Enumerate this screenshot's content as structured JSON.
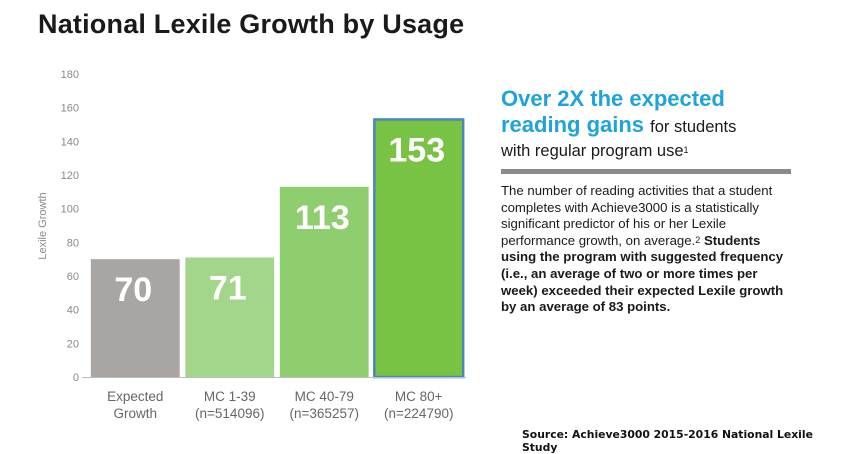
{
  "title": "National Lexile Growth by Usage",
  "callout": {
    "headline_line1": "Over 2X the expected",
    "headline_line2": "reading gains",
    "headline_tail1": "for students",
    "headline_tail2": "with regular program use",
    "footnote1": "1",
    "body_intro": "The number of reading activities that a student completes with Achieve3000 is a statistically significant predictor of his or her Lexile performance growth, on average.",
    "footnote2": "2",
    "body_bold": "Students using the program with suggested frequency (i.e., an average of two or more times per week) exceeded their expected Lexile growth by an average of 83 points."
  },
  "source": "Source: Achieve3000 2015-2016 National Lexile Study",
  "colors": {
    "accent_blue": "#1fa3dc",
    "bar_expected": "#a8a5a2",
    "bar_mc1": "#a3d68a",
    "bar_mc2": "#8fce6e",
    "bar_mc3": "#78c244",
    "bar_mc3_border": "#4a86b8"
  },
  "chart_data": {
    "type": "bar",
    "ylabel": "Lexile Growth",
    "ylim": [
      0,
      180
    ],
    "yticks": [
      0,
      20,
      40,
      60,
      80,
      100,
      120,
      140,
      160,
      180
    ],
    "grid": false,
    "categories": [
      {
        "line1": "Expected",
        "line2": "Growth"
      },
      {
        "line1": "MC 1-39",
        "line2": "(n=514096)"
      },
      {
        "line1": "MC 40-79",
        "line2": "(n=365257)"
      },
      {
        "line1": "MC 80+",
        "line2": "(n=224790)"
      }
    ],
    "values": [
      70,
      71,
      113,
      153
    ]
  }
}
